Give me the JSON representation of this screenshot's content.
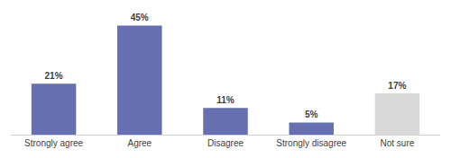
{
  "chart_data": {
    "type": "bar",
    "categories": [
      "Strongly agree",
      "Agree",
      "Disagree",
      "Strongly disagree",
      "Not sure"
    ],
    "values": [
      21,
      45,
      11,
      5,
      17
    ],
    "value_labels": [
      "21%",
      "45%",
      "11%",
      "5%",
      "17%"
    ],
    "colors": [
      "#6670b0",
      "#6670b0",
      "#6670b0",
      "#6670b0",
      "#d9d9d9"
    ],
    "data_labels": true,
    "tick_labels": "x",
    "grid": false
  }
}
